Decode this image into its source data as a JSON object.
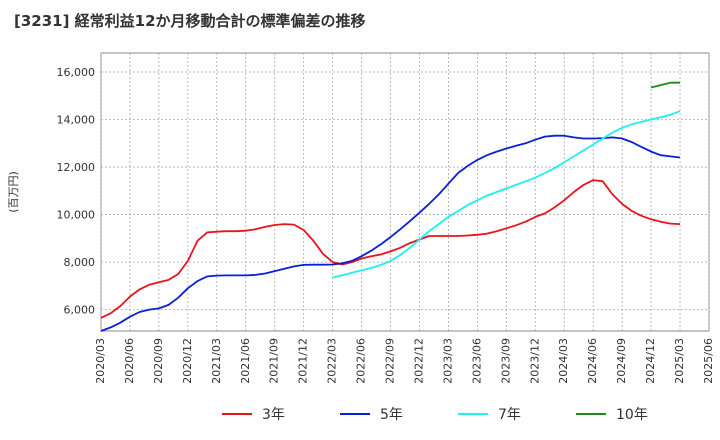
{
  "chart_data": {
    "type": "line",
    "title": "[3231]  経常利益12か月移動合計の標準偏差の推移",
    "ylabel": "(百万円)",
    "xlabel": "",
    "ylim": [
      5100,
      16800
    ],
    "yticks": [
      6000,
      8000,
      10000,
      12000,
      14000,
      16000
    ],
    "ytick_labels": [
      "6,000",
      "8,000",
      "10,000",
      "12,000",
      "14,000",
      "16,000"
    ],
    "xlim": [
      "2020-03",
      "2025-06"
    ],
    "xtick_labels": [
      "2020/03",
      "2020/06",
      "2020/09",
      "2020/12",
      "2021/03",
      "2021/06",
      "2021/09",
      "2021/12",
      "2022/03",
      "2022/06",
      "2022/09",
      "2022/12",
      "2023/03",
      "2023/06",
      "2023/09",
      "2023/12",
      "2024/03",
      "2024/06",
      "2024/09",
      "2024/12",
      "2025/03",
      "2025/06"
    ],
    "grid": true,
    "legend_position": "bottom",
    "series": [
      {
        "name": "3年",
        "color": "#e8141b",
        "x": [
          "2020-03",
          "2020-04",
          "2020-05",
          "2020-06",
          "2020-07",
          "2020-08",
          "2020-09",
          "2020-10",
          "2020-11",
          "2020-12",
          "2021-01",
          "2021-02",
          "2021-03",
          "2021-04",
          "2021-05",
          "2021-06",
          "2021-07",
          "2021-08",
          "2021-09",
          "2021-10",
          "2021-11",
          "2021-12",
          "2022-01",
          "2022-02",
          "2022-03",
          "2022-04",
          "2022-05",
          "2022-06",
          "2022-07",
          "2022-08",
          "2022-09",
          "2022-10",
          "2022-11",
          "2022-12",
          "2023-01",
          "2023-02",
          "2023-03",
          "2023-04",
          "2023-05",
          "2023-06",
          "2023-07",
          "2023-08",
          "2023-09",
          "2023-10",
          "2023-11",
          "2023-12",
          "2024-01",
          "2024-02",
          "2024-03",
          "2024-04",
          "2024-05",
          "2024-06",
          "2024-07",
          "2024-08",
          "2024-09",
          "2024-10",
          "2024-11",
          "2024-12",
          "2025-01",
          "2025-02",
          "2025-03"
        ],
        "values": [
          5650,
          5850,
          6150,
          6550,
          6850,
          7050,
          7150,
          7250,
          7500,
          8050,
          8900,
          9250,
          9280,
          9300,
          9300,
          9320,
          9380,
          9480,
          9560,
          9600,
          9580,
          9350,
          8900,
          8350,
          8000,
          7900,
          8000,
          8150,
          8250,
          8320,
          8450,
          8600,
          8800,
          8950,
          9100,
          9100,
          9100,
          9100,
          9120,
          9150,
          9200,
          9300,
          9420,
          9550,
          9700,
          9900,
          10050,
          10300,
          10600,
          10950,
          11250,
          11450,
          11400,
          10850,
          10450,
          10150,
          9950,
          9800,
          9700,
          9620,
          9600
        ]
      },
      {
        "name": "5年",
        "color": "#0a1fd6",
        "x": [
          "2020-03",
          "2020-04",
          "2020-05",
          "2020-06",
          "2020-07",
          "2020-08",
          "2020-09",
          "2020-10",
          "2020-11",
          "2020-12",
          "2021-01",
          "2021-02",
          "2021-03",
          "2021-04",
          "2021-05",
          "2021-06",
          "2021-07",
          "2021-08",
          "2021-09",
          "2021-10",
          "2021-11",
          "2021-12",
          "2022-01",
          "2022-02",
          "2022-03",
          "2022-04",
          "2022-05",
          "2022-06",
          "2022-07",
          "2022-08",
          "2022-09",
          "2022-10",
          "2022-11",
          "2022-12",
          "2023-01",
          "2023-02",
          "2023-03",
          "2023-04",
          "2023-05",
          "2023-06",
          "2023-07",
          "2023-08",
          "2023-09",
          "2023-10",
          "2023-11",
          "2023-12",
          "2024-01",
          "2024-02",
          "2024-03",
          "2024-04",
          "2024-05",
          "2024-06",
          "2024-07",
          "2024-08",
          "2024-09",
          "2024-10",
          "2024-11",
          "2024-12",
          "2025-01",
          "2025-02",
          "2025-03"
        ],
        "values": [
          5100,
          5250,
          5450,
          5700,
          5900,
          6000,
          6050,
          6200,
          6500,
          6900,
          7200,
          7400,
          7430,
          7440,
          7440,
          7440,
          7460,
          7520,
          7620,
          7720,
          7820,
          7880,
          7890,
          7890,
          7900,
          7950,
          8050,
          8250,
          8480,
          8750,
          9050,
          9380,
          9720,
          10080,
          10450,
          10850,
          11300,
          11750,
          12050,
          12300,
          12500,
          12650,
          12780,
          12900,
          13000,
          13150,
          13280,
          13320,
          13320,
          13250,
          13200,
          13200,
          13220,
          13250,
          13200,
          13050,
          12850,
          12650,
          12500,
          12450,
          12400
        ]
      },
      {
        "name": "7年",
        "color": "#1cf0f0",
        "x": [
          "2022-03",
          "2022-04",
          "2022-05",
          "2022-06",
          "2022-07",
          "2022-08",
          "2022-09",
          "2022-10",
          "2022-11",
          "2022-12",
          "2023-01",
          "2023-02",
          "2023-03",
          "2023-04",
          "2023-05",
          "2023-06",
          "2023-07",
          "2023-08",
          "2023-09",
          "2023-10",
          "2023-11",
          "2023-12",
          "2024-01",
          "2024-02",
          "2024-03",
          "2024-04",
          "2024-05",
          "2024-06",
          "2024-07",
          "2024-08",
          "2024-09",
          "2024-10",
          "2024-11",
          "2024-12",
          "2025-01",
          "2025-02",
          "2025-03"
        ],
        "values": [
          7350,
          7450,
          7550,
          7650,
          7750,
          7880,
          8050,
          8300,
          8600,
          8950,
          9300,
          9600,
          9900,
          10150,
          10400,
          10600,
          10800,
          10950,
          11100,
          11250,
          11400,
          11550,
          11750,
          11950,
          12200,
          12450,
          12700,
          12950,
          13200,
          13450,
          13650,
          13800,
          13900,
          14000,
          14100,
          14200,
          14350
        ]
      },
      {
        "name": "10年",
        "color": "#1e8a1e",
        "x": [
          "2024-12",
          "2025-01",
          "2025-02",
          "2025-03"
        ],
        "values": [
          15350,
          15450,
          15550,
          15550
        ]
      }
    ]
  }
}
